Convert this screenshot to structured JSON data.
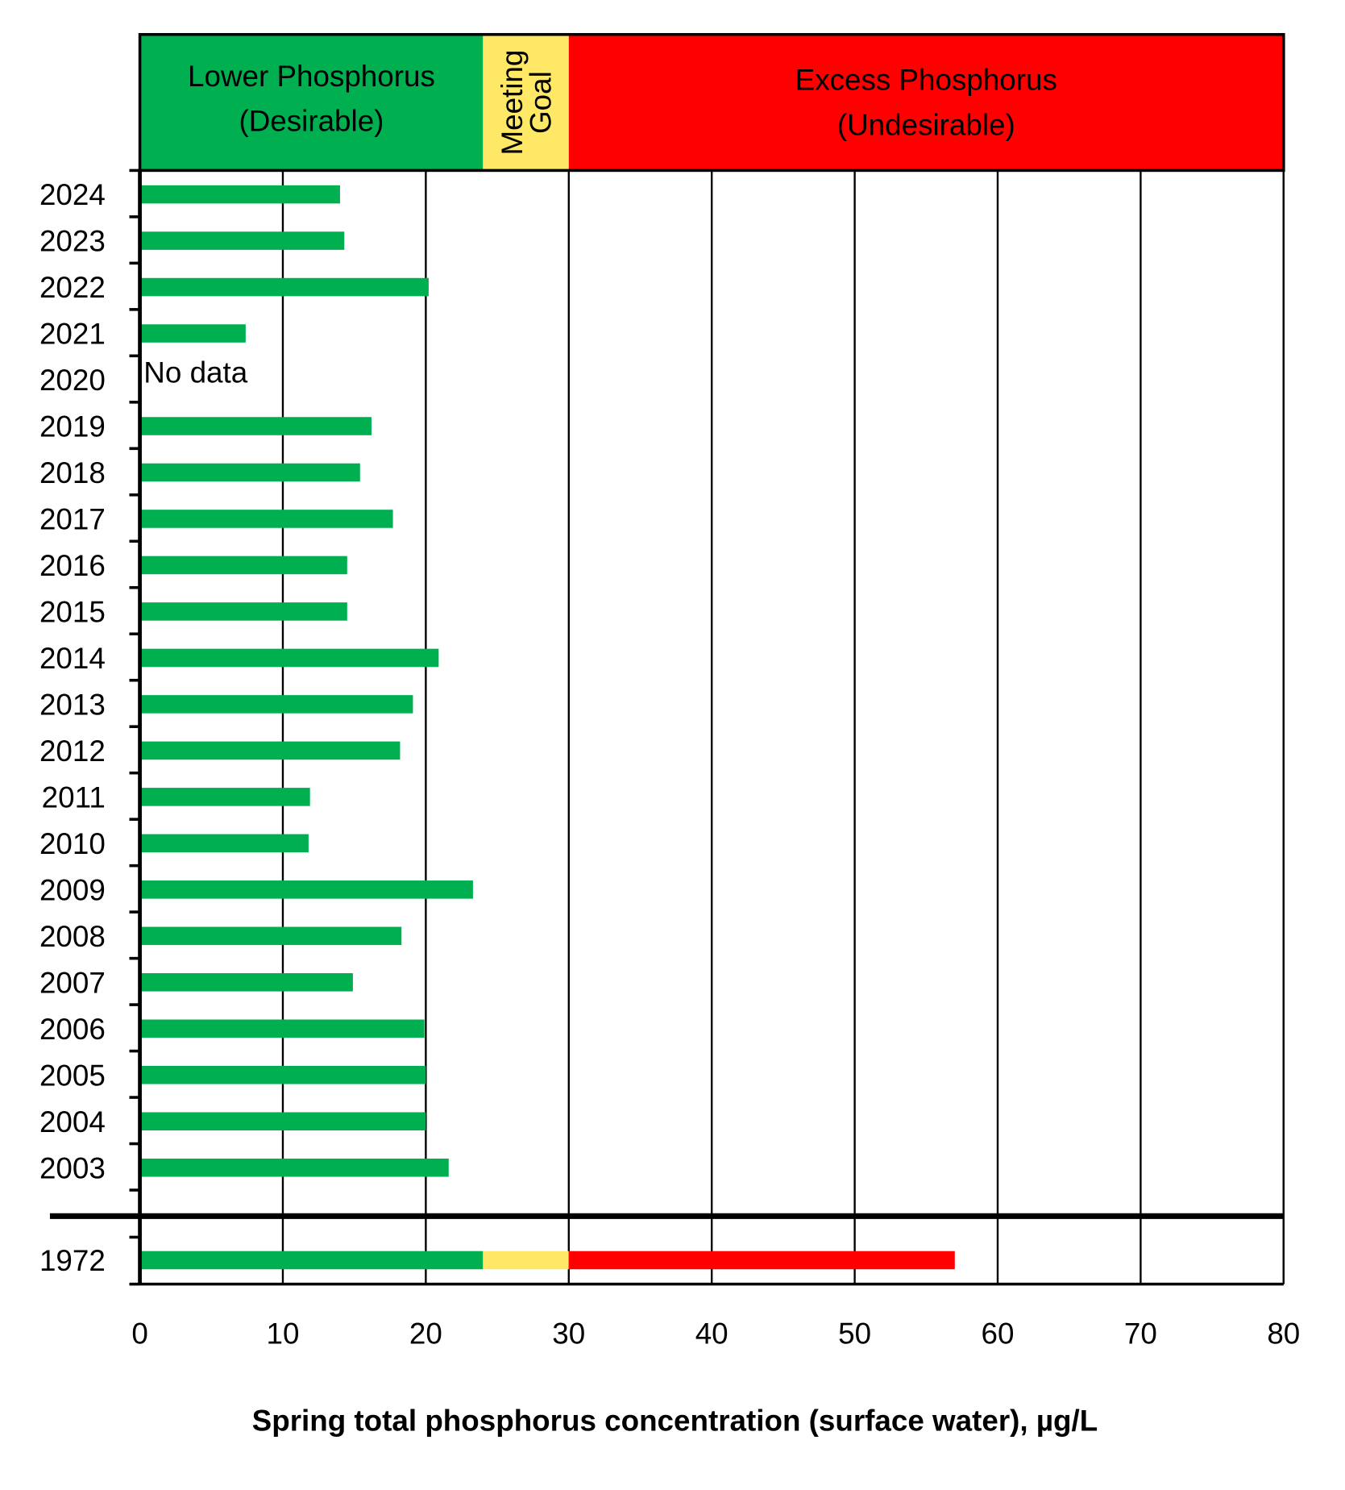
{
  "chart_data": {
    "type": "bar",
    "orientation": "horizontal",
    "xlabel": "Spring total phosphorus concentration (surface water), µg/L",
    "ylabel": "",
    "xlim": [
      0,
      80
    ],
    "xticks": [
      0,
      10,
      20,
      30,
      40,
      50,
      60,
      70,
      80
    ],
    "grid": true,
    "zones": [
      {
        "label_lines": [
          "Lower Phosphorus",
          "(Desirable)"
        ],
        "from": 0,
        "to": 24,
        "color": "#00B050"
      },
      {
        "label_lines": [
          "Meeting",
          "Goal"
        ],
        "from": 24,
        "to": 30,
        "color": "#FFE866"
      },
      {
        "label_lines": [
          "Excess Phosphorus",
          "(Undesirable)"
        ],
        "from": 30,
        "to": 80,
        "color": "#FF0000"
      }
    ],
    "categories": [
      "2024",
      "2023",
      "2022",
      "2021",
      "2020",
      "2019",
      "2018",
      "2017",
      "2016",
      "2015",
      "2014",
      "2013",
      "2012",
      "2011",
      "2010",
      "2009",
      "2008",
      "2007",
      "2006",
      "2005",
      "2004",
      "2003"
    ],
    "values": [
      14.0,
      14.3,
      20.2,
      7.4,
      null,
      16.2,
      15.4,
      17.7,
      14.5,
      14.5,
      20.9,
      19.1,
      18.2,
      11.9,
      11.8,
      23.3,
      18.3,
      14.9,
      19.9,
      20.0,
      20.0,
      21.6
    ],
    "missing_label": "No data",
    "bar_color": "#00B050",
    "historic": {
      "category": "1972",
      "value": 57
    }
  }
}
